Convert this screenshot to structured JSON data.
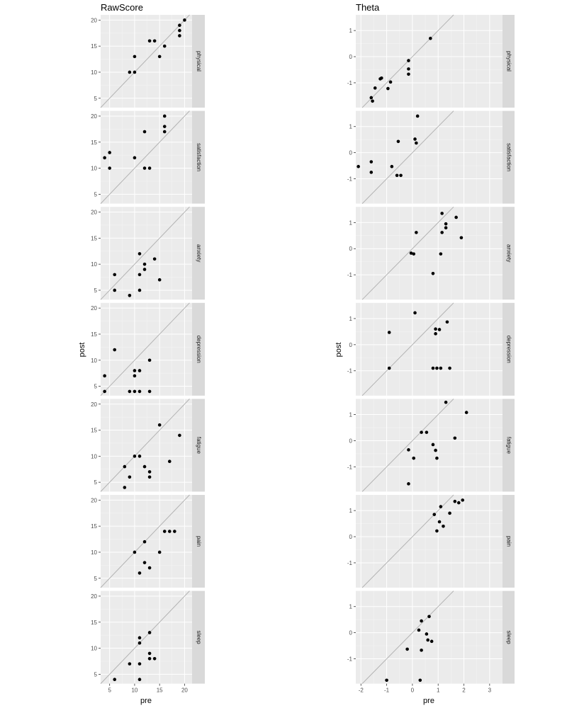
{
  "chart_data": [
    {
      "type": "scatter",
      "title": "RawScore",
      "xlabel": "pre",
      "ylabel": "post",
      "xlim": [
        3.2,
        21.5
      ],
      "ylim": [
        3.2,
        21.0
      ],
      "x_ticks": [
        5,
        10,
        15,
        20
      ],
      "y_ticks": [
        5,
        10,
        15,
        20
      ],
      "x_tick_labels": [
        "5",
        "10",
        "15",
        "20"
      ],
      "y_tick_labels": [
        "5",
        "10",
        "15",
        "20"
      ],
      "reference_line": "y = x",
      "grid": true,
      "facets": [
        {
          "label": "physical",
          "points": [
            [
              9,
              10
            ],
            [
              10,
              10
            ],
            [
              10,
              13
            ],
            [
              13,
              16
            ],
            [
              14,
              16
            ],
            [
              15,
              13
            ],
            [
              16,
              15
            ],
            [
              19,
              17
            ],
            [
              19,
              18
            ],
            [
              19,
              19
            ],
            [
              20,
              20
            ]
          ]
        },
        {
          "label": "satisfaction",
          "points": [
            [
              4,
              12
            ],
            [
              5,
              10
            ],
            [
              5,
              13
            ],
            [
              10,
              12
            ],
            [
              12,
              10
            ],
            [
              12,
              17
            ],
            [
              13,
              10
            ],
            [
              16,
              17
            ],
            [
              16,
              18
            ],
            [
              16,
              20
            ]
          ]
        },
        {
          "label": "anxiety",
          "points": [
            [
              6,
              5
            ],
            [
              6,
              8
            ],
            [
              9,
              4
            ],
            [
              11,
              5
            ],
            [
              11,
              8
            ],
            [
              11,
              12
            ],
            [
              12,
              9
            ],
            [
              12,
              10
            ],
            [
              14,
              11
            ],
            [
              15,
              7
            ]
          ]
        },
        {
          "label": "depression",
          "points": [
            [
              4,
              4
            ],
            [
              4,
              7
            ],
            [
              6,
              12
            ],
            [
              9,
              4
            ],
            [
              10,
              4
            ],
            [
              10,
              7
            ],
            [
              10,
              8
            ],
            [
              11,
              4
            ],
            [
              11,
              8
            ],
            [
              13,
              4
            ],
            [
              13,
              10
            ]
          ]
        },
        {
          "label": "fatigue",
          "points": [
            [
              8,
              4
            ],
            [
              8,
              8
            ],
            [
              9,
              6
            ],
            [
              10,
              10
            ],
            [
              11,
              10
            ],
            [
              12,
              8
            ],
            [
              13,
              6
            ],
            [
              13,
              7
            ],
            [
              15,
              16
            ],
            [
              17,
              9
            ],
            [
              19,
              14
            ]
          ]
        },
        {
          "label": "pain",
          "points": [
            [
              10,
              10
            ],
            [
              11,
              6
            ],
            [
              12,
              8
            ],
            [
              12,
              12
            ],
            [
              13,
              7
            ],
            [
              15,
              10
            ],
            [
              16,
              14
            ],
            [
              17,
              14
            ],
            [
              18,
              14
            ]
          ]
        },
        {
          "label": "sleep",
          "points": [
            [
              6,
              4
            ],
            [
              9,
              7
            ],
            [
              11,
              4
            ],
            [
              11,
              7
            ],
            [
              11,
              11
            ],
            [
              11,
              12
            ],
            [
              13,
              8
            ],
            [
              13,
              9
            ],
            [
              13,
              13
            ],
            [
              14,
              8
            ]
          ]
        }
      ]
    },
    {
      "type": "scatter",
      "title": "Theta",
      "xlabel": "pre",
      "ylabel": "post",
      "xlim": [
        -2.2,
        3.5
      ],
      "ylim": [
        -1.95,
        1.6
      ],
      "x_ticks": [
        -2,
        -1,
        0,
        1,
        2,
        3
      ],
      "y_ticks": [
        -1,
        0,
        1
      ],
      "x_tick_labels": [
        "-2",
        "-1",
        "0",
        "1",
        "2",
        "3"
      ],
      "y_tick_labels": [
        "-1",
        "0",
        "1"
      ],
      "reference_line": "y = x",
      "grid": true,
      "facets": [
        {
          "label": "physical",
          "points": [
            [
              -1.6,
              -1.57
            ],
            [
              -1.55,
              -1.7
            ],
            [
              -1.45,
              -1.2
            ],
            [
              -1.25,
              -0.85
            ],
            [
              -1.2,
              -0.82
            ],
            [
              -0.95,
              -1.22
            ],
            [
              -0.85,
              -0.97
            ],
            [
              -0.15,
              -0.15
            ],
            [
              -0.15,
              -0.47
            ],
            [
              -0.15,
              -0.67
            ],
            [
              0.7,
              0.7
            ]
          ]
        },
        {
          "label": "satisfaction",
          "points": [
            [
              -2.1,
              -0.53
            ],
            [
              -1.6,
              -0.35
            ],
            [
              -1.6,
              -0.75
            ],
            [
              -0.8,
              -0.53
            ],
            [
              -0.6,
              -0.87
            ],
            [
              -0.45,
              -0.87
            ],
            [
              -0.55,
              0.43
            ],
            [
              0.1,
              0.52
            ],
            [
              0.15,
              0.37
            ],
            [
              0.2,
              1.4
            ]
          ]
        },
        {
          "label": "anxiety",
          "points": [
            [
              -0.05,
              -0.17
            ],
            [
              0.05,
              -0.2
            ],
            [
              0.15,
              0.62
            ],
            [
              0.8,
              -0.95
            ],
            [
              1.1,
              -0.2
            ],
            [
              1.15,
              0.62
            ],
            [
              1.15,
              1.35
            ],
            [
              1.3,
              0.95
            ],
            [
              1.3,
              0.8
            ],
            [
              1.7,
              1.2
            ],
            [
              1.9,
              0.42
            ]
          ]
        },
        {
          "label": "depression",
          "points": [
            [
              -0.9,
              0.47
            ],
            [
              -0.9,
              -0.9
            ],
            [
              0.1,
              1.22
            ],
            [
              0.8,
              -0.9
            ],
            [
              0.9,
              0.42
            ],
            [
              0.9,
              0.6
            ],
            [
              0.95,
              -0.9
            ],
            [
              1.05,
              0.58
            ],
            [
              1.1,
              -0.9
            ],
            [
              1.35,
              0.87
            ],
            [
              1.45,
              -0.9
            ]
          ]
        },
        {
          "label": "fatigue",
          "points": [
            [
              -0.15,
              -1.65
            ],
            [
              -0.15,
              -0.35
            ],
            [
              0.05,
              -0.67
            ],
            [
              0.35,
              0.32
            ],
            [
              0.55,
              0.32
            ],
            [
              0.8,
              -0.15
            ],
            [
              0.9,
              -0.37
            ],
            [
              0.95,
              -0.67
            ],
            [
              1.3,
              1.47
            ],
            [
              1.65,
              0.1
            ],
            [
              2.1,
              1.08
            ]
          ]
        },
        {
          "label": "pain",
          "points": [
            [
              0.85,
              0.85
            ],
            [
              0.95,
              0.22
            ],
            [
              1.05,
              0.57
            ],
            [
              1.1,
              1.15
            ],
            [
              1.2,
              0.4
            ],
            [
              1.45,
              0.9
            ],
            [
              1.65,
              1.35
            ],
            [
              1.8,
              1.3
            ],
            [
              1.95,
              1.4
            ]
          ]
        },
        {
          "label": "sleep",
          "points": [
            [
              -1.0,
              -1.82
            ],
            [
              -0.2,
              -0.63
            ],
            [
              0.25,
              0.1
            ],
            [
              0.3,
              -1.82
            ],
            [
              0.35,
              0.45
            ],
            [
              0.35,
              -0.67
            ],
            [
              0.55,
              -0.05
            ],
            [
              0.6,
              -0.28
            ],
            [
              0.65,
              0.62
            ],
            [
              0.75,
              -0.33
            ]
          ]
        }
      ]
    }
  ]
}
